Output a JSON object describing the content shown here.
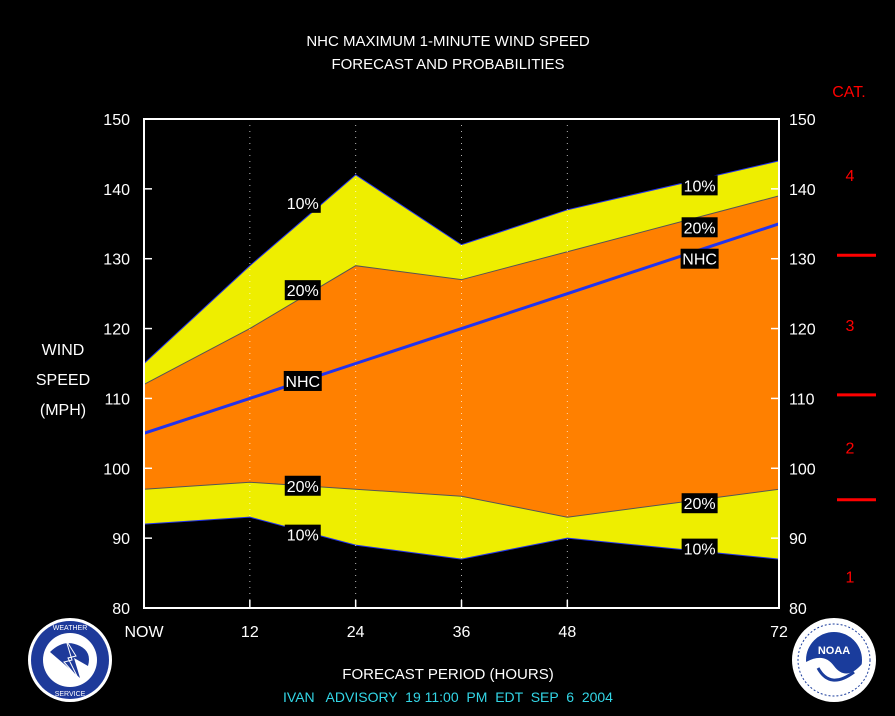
{
  "colors": {
    "background": "#000000",
    "band_outer": "#eeee00",
    "band_inner": "#ff8000",
    "nhc_line": "#2233ee",
    "category": "#ff0000",
    "advisory": "#33d6e6"
  },
  "chart_data": {
    "type": "area",
    "title": "NHC MAXIMUM 1-MINUTE WIND SPEED",
    "subtitle": "FORECAST AND PROBABILITIES",
    "xlabel": "FORECAST PERIOD (HOURS)",
    "ylabel": [
      "WIND",
      "SPEED",
      "(MPH)"
    ],
    "x_ticks": [
      "NOW",
      "12",
      "24",
      "36",
      "48",
      "72"
    ],
    "x_tick_values": [
      0,
      12,
      24,
      36,
      48,
      72
    ],
    "y_ticks": [
      "150",
      "140",
      "130",
      "120",
      "110",
      "100",
      "90",
      "80"
    ],
    "y_tick_values": [
      150,
      140,
      130,
      120,
      110,
      100,
      90,
      80
    ],
    "xlim": [
      0,
      72
    ],
    "ylim": [
      80,
      150
    ],
    "grid": "vertical dotted at 12, 24, 36, 48",
    "x": [
      0,
      12,
      24,
      36,
      48,
      72
    ],
    "series": [
      {
        "name": "10%",
        "role": "upper",
        "values": [
          115,
          129,
          142,
          132,
          137,
          144
        ]
      },
      {
        "name": "20%",
        "role": "upper",
        "values": [
          112,
          120,
          129,
          127,
          131,
          139
        ]
      },
      {
        "name": "NHC",
        "role": "forecast",
        "values": [
          105,
          110,
          115,
          120,
          125,
          135
        ]
      },
      {
        "name": "20%",
        "role": "lower",
        "values": [
          97,
          98,
          97,
          96,
          93,
          97
        ]
      },
      {
        "name": "10%",
        "role": "lower",
        "values": [
          92,
          93,
          89,
          87,
          90,
          87
        ]
      }
    ],
    "annotations": [
      {
        "text": "10%",
        "x": 18,
        "y": 138
      },
      {
        "text": "20%",
        "x": 18,
        "y": 125.5
      },
      {
        "text": "NHC",
        "x": 18,
        "y": 112.5
      },
      {
        "text": "20%",
        "x": 18,
        "y": 97.5
      },
      {
        "text": "10%",
        "x": 18,
        "y": 90.5
      },
      {
        "text": "10%",
        "x": 63,
        "y": 140.5
      },
      {
        "text": "20%",
        "x": 63,
        "y": 134.5
      },
      {
        "text": "NHC",
        "x": 63,
        "y": 130
      },
      {
        "text": "20%",
        "x": 63,
        "y": 95
      },
      {
        "text": "10%",
        "x": 63,
        "y": 88.5
      }
    ],
    "category_scale": {
      "heading": "CAT.",
      "labels": [
        {
          "text": "4",
          "y": 142
        },
        {
          "text": "3",
          "y": 120.5
        },
        {
          "text": "2",
          "y": 103
        },
        {
          "text": "1",
          "y": 84.5
        }
      ],
      "boundaries": [
        130.5,
        110.5,
        95.5
      ]
    }
  },
  "advisory": "IVAN   ADVISORY  19 11:00  PM  EDT  SEP  6  2004"
}
